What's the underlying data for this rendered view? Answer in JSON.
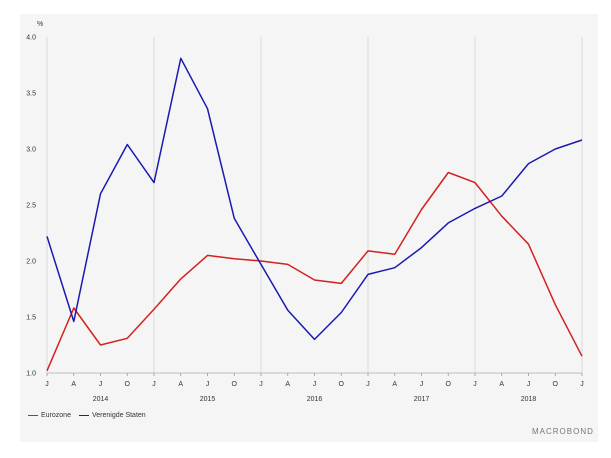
{
  "chart_data": {
    "type": "line",
    "unit": "%",
    "ylim": [
      1.0,
      4.0
    ],
    "y_ticks": [
      "1.0",
      "1.5",
      "2.0",
      "2.5",
      "3.0",
      "3.5",
      "4.0"
    ],
    "x": [
      "2014-01",
      "2014-04",
      "2014-07",
      "2014-10",
      "2015-01",
      "2015-04",
      "2015-07",
      "2015-10",
      "2016-01",
      "2016-04",
      "2016-07",
      "2016-10",
      "2017-01",
      "2017-04",
      "2017-07",
      "2017-10",
      "2018-01",
      "2018-04",
      "2018-07",
      "2018-10",
      "2019-01"
    ],
    "x_tick_labels": [
      "J",
      "A",
      "J",
      "O",
      "J",
      "A",
      "J",
      "O",
      "J",
      "A",
      "J",
      "O",
      "J",
      "A",
      "J",
      "O",
      "J",
      "A",
      "J",
      "O",
      "J"
    ],
    "year_labels": [
      "2014",
      "2015",
      "2016",
      "2017",
      "2018"
    ],
    "series": [
      {
        "name": "Eurozone",
        "color": "#d42020",
        "values": [
          1.02,
          1.58,
          1.25,
          1.31,
          1.57,
          1.84,
          2.05,
          2.02,
          2.0,
          1.97,
          1.83,
          1.8,
          2.09,
          2.06,
          2.46,
          2.79,
          2.7,
          2.4,
          2.15,
          1.61,
          1.15
        ]
      },
      {
        "name": "Verenigde Staten",
        "color": "#1a1ab0",
        "values": [
          2.22,
          1.46,
          2.6,
          3.04,
          2.7,
          3.81,
          3.36,
          2.38,
          1.97,
          1.56,
          1.3,
          1.54,
          1.88,
          1.94,
          2.12,
          2.34,
          2.47,
          2.58,
          2.87,
          3.0,
          3.08
        ]
      }
    ],
    "legend_position": "bottom-left",
    "grid": "vertical at January"
  },
  "brand": "MACROBOND"
}
